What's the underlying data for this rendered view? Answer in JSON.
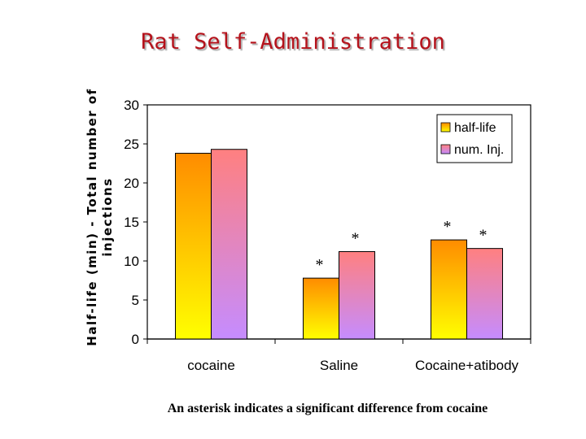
{
  "title": "Rat Self-Administration",
  "footnote": "An asterisk indicates a significant difference from cocaine",
  "chart_data": {
    "type": "bar",
    "categories": [
      "cocaine",
      "Saline",
      "Cocaine+atibody"
    ],
    "series": [
      {
        "name": "half-life",
        "values": [
          23.8,
          7.8,
          12.7
        ],
        "significant": [
          false,
          true,
          true
        ],
        "color_top": "#ff8c00",
        "color_bottom": "#ffff00"
      },
      {
        "name": "num. Inj.",
        "values": [
          24.3,
          11.2,
          11.6
        ],
        "significant": [
          false,
          true,
          true
        ],
        "color_top": "#ff8080",
        "color_bottom": "#c58cff"
      }
    ],
    "ylabel_line1": "Half-life (min) - Total number of",
    "ylabel_line2": "injections",
    "yticks": [
      "0",
      "5",
      "10",
      "15",
      "20",
      "25",
      "30"
    ],
    "ylim": [
      0,
      30
    ],
    "legend_position": "top-right",
    "significance_marker": "*"
  }
}
